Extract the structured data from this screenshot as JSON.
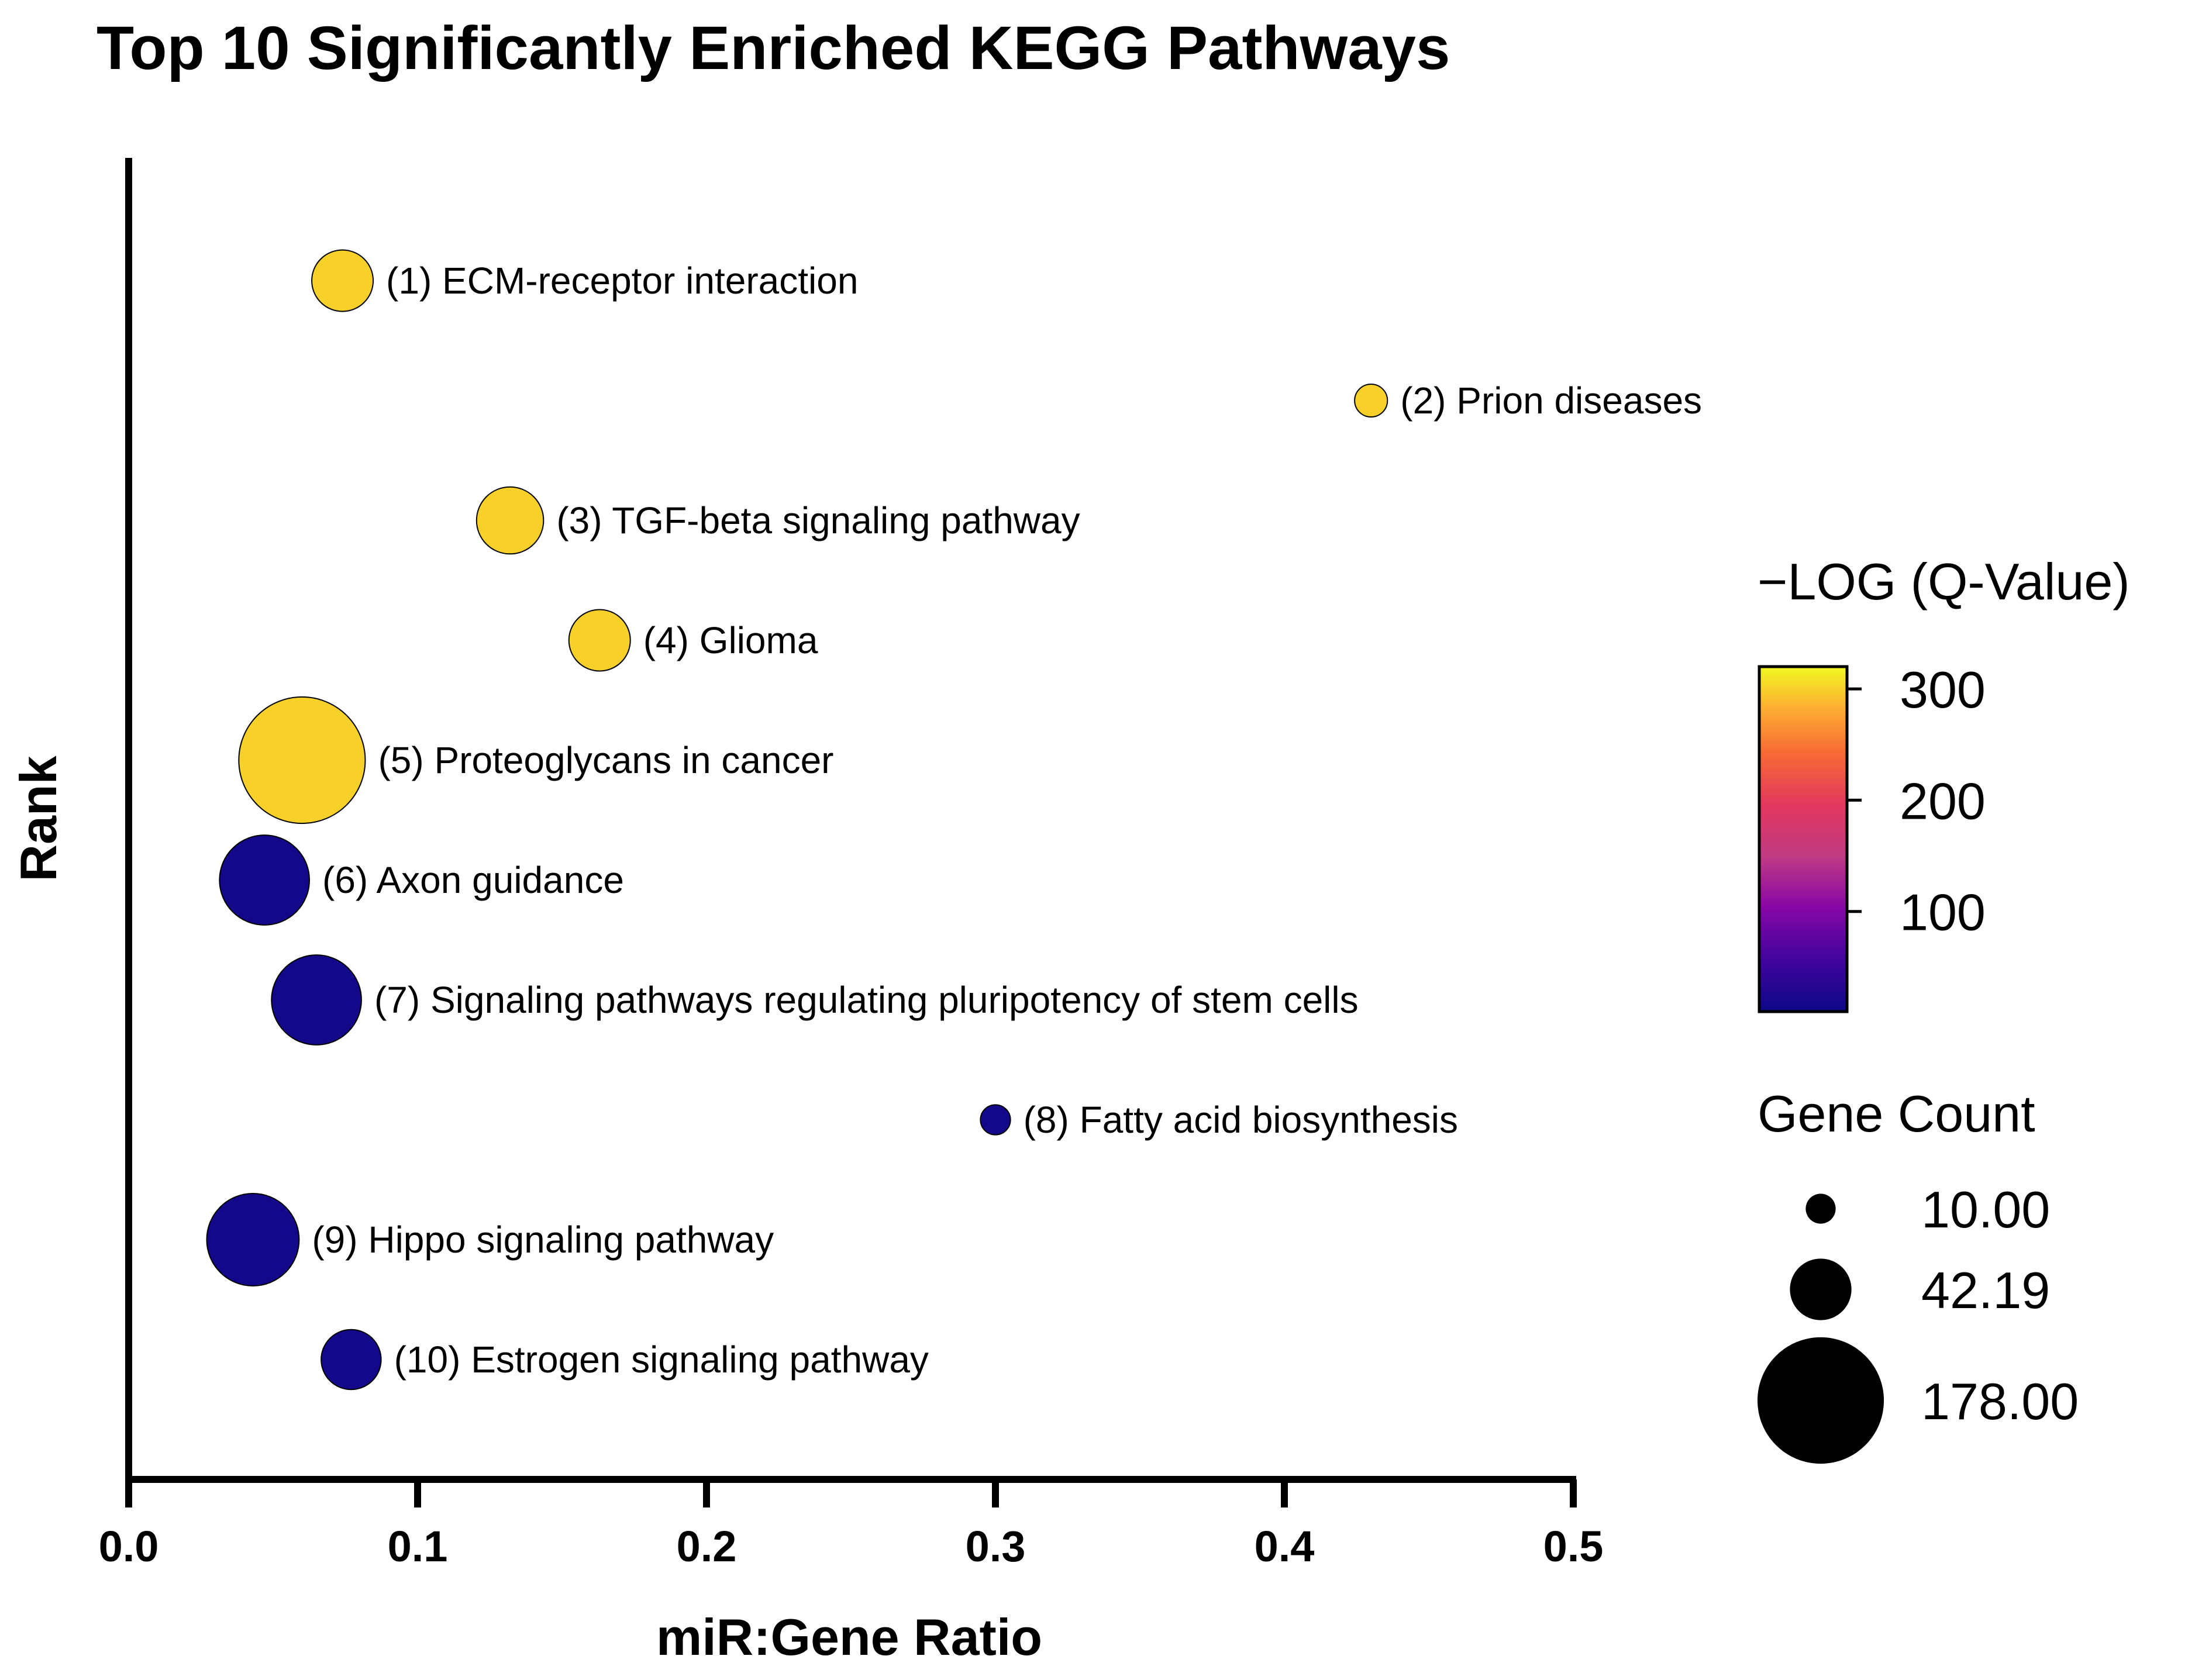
{
  "chart_data": {
    "type": "scatter",
    "title": "Top 10 Significantly Enriched KEGG Pathways",
    "xlabel": "miR:Gene Ratio",
    "ylabel": "Rank",
    "xlim": [
      0,
      0.5
    ],
    "x_ticks": [
      "0.0",
      "0.1",
      "0.2",
      "0.3",
      "0.4",
      "0.5"
    ],
    "points": [
      {
        "rank": 1,
        "label": "(1) ECM-receptor interaction",
        "x": 0.074,
        "gene_count": 42,
        "neg_log_q": 300
      },
      {
        "rank": 2,
        "label": "(2) Prion diseases",
        "x": 0.43,
        "gene_count": 12,
        "neg_log_q": 300
      },
      {
        "rank": 3,
        "label": "(3) TGF-beta signaling pathway",
        "x": 0.132,
        "gene_count": 50,
        "neg_log_q": 300
      },
      {
        "rank": 4,
        "label": "(4) Glioma",
        "x": 0.163,
        "gene_count": 42,
        "neg_log_q": 300
      },
      {
        "rank": 5,
        "label": "(5) Proteoglycans in cancer",
        "x": 0.06,
        "gene_count": 178,
        "neg_log_q": 300
      },
      {
        "rank": 6,
        "label": "(6) Axon guidance",
        "x": 0.047,
        "gene_count": 90,
        "neg_log_q": 15
      },
      {
        "rank": 7,
        "label": "(7) Signaling pathways regulating pluripotency of stem cells",
        "x": 0.065,
        "gene_count": 90,
        "neg_log_q": 15
      },
      {
        "rank": 8,
        "label": "(8) Fatty acid biosynthesis",
        "x": 0.3,
        "gene_count": 10,
        "neg_log_q": 15
      },
      {
        "rank": 9,
        "label": "(9) Hippo signaling pathway",
        "x": 0.043,
        "gene_count": 95,
        "neg_log_q": 15
      },
      {
        "rank": 10,
        "label": "(10) Estrogen signaling pathway",
        "x": 0.077,
        "gene_count": 40,
        "neg_log_q": 15
      }
    ],
    "color_legend": {
      "title": "−LOG (Q-Value)",
      "range": [
        10,
        320
      ],
      "ticks": [
        {
          "value": 300,
          "label": "300"
        },
        {
          "value": 200,
          "label": "200"
        },
        {
          "value": 100,
          "label": "100"
        }
      ]
    },
    "size_legend": {
      "title": "Gene Count",
      "entries": [
        {
          "value": 10,
          "label": "10.00"
        },
        {
          "value": 42.19,
          "label": "42.19"
        },
        {
          "value": 178,
          "label": "178.00"
        }
      ]
    }
  }
}
